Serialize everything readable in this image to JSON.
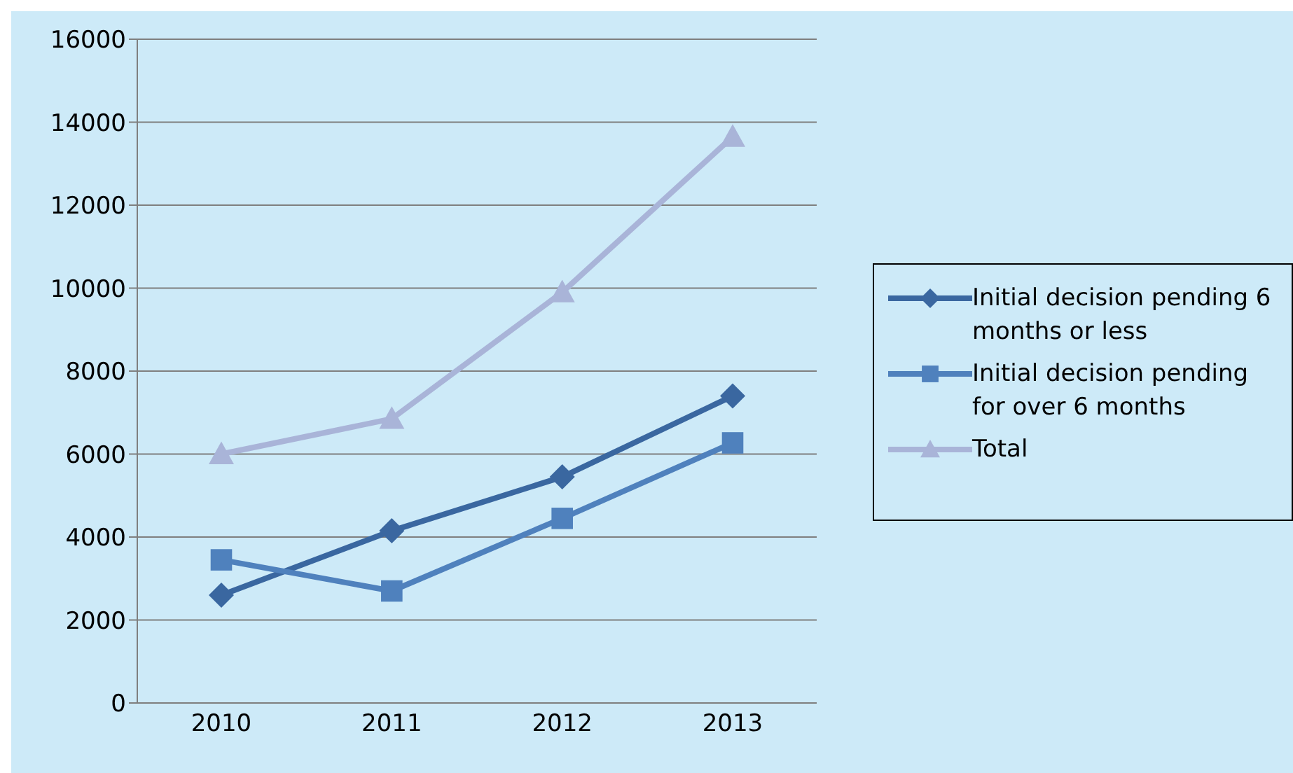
{
  "chart_data": {
    "type": "line",
    "categories": [
      "2010",
      "2011",
      "2012",
      "2013"
    ],
    "series": [
      {
        "name": "Initial decision pending 6 months or less",
        "color": "#3a67a0",
        "marker": "diamond",
        "values": [
          2600,
          4150,
          5450,
          7400
        ]
      },
      {
        "name": "Initial decision pending for over 6 months",
        "color": "#4f81bd",
        "marker": "square",
        "values": [
          3450,
          2700,
          4450,
          6270
        ]
      },
      {
        "name": "Total",
        "color": "#a9b4d8",
        "marker": "triangle",
        "values": [
          6000,
          6850,
          9900,
          13650
        ]
      }
    ],
    "ylim": [
      0,
      16000
    ],
    "yticks": [
      0,
      2000,
      4000,
      6000,
      8000,
      10000,
      12000,
      14000,
      16000
    ],
    "grid": "y",
    "legend": "right"
  }
}
